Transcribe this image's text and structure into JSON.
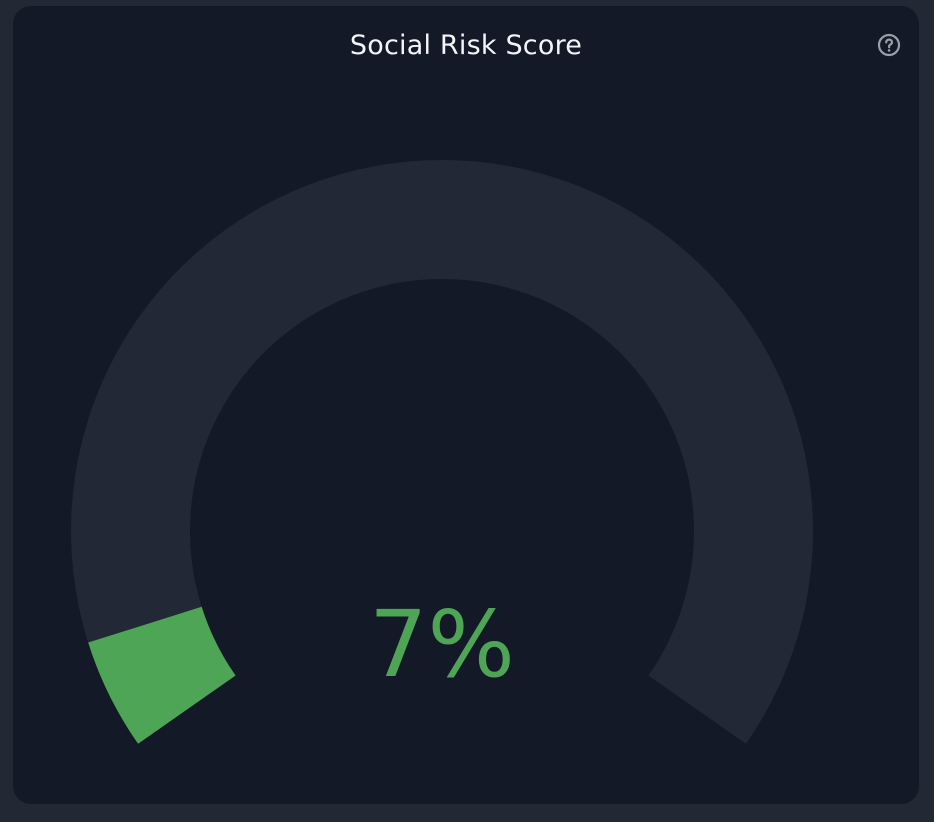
{
  "widget": {
    "title": "Social Risk Score",
    "help_icon": "question-circle-icon",
    "score_label": "7%"
  },
  "gauge": {
    "value_percent": 7,
    "start_angle_deg": 235,
    "end_angle_deg": 485
  },
  "colors": {
    "page_background": "#222834",
    "card_background": "#131926",
    "track": "#222836",
    "fill": "#4fa556",
    "title_text": "#f3f5f8",
    "help_icon": "#9aa0aa"
  }
}
